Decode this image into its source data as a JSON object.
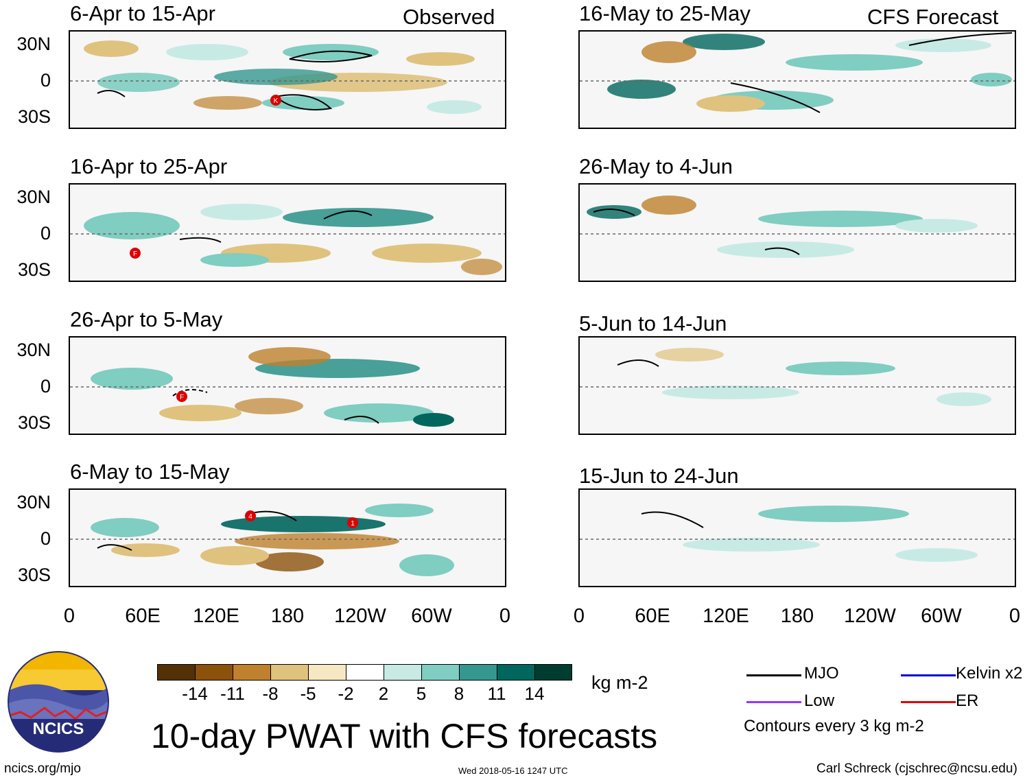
{
  "header": {
    "observed_label": "Observed",
    "forecast_label": "CFS Forecast"
  },
  "observed_panels": [
    {
      "title": "6-Apr to 15-Apr",
      "storm_labels": [
        "K"
      ]
    },
    {
      "title": "16-Apr to 25-Apr",
      "storm_labels": [
        "F"
      ]
    },
    {
      "title": "26-Apr to 5-May",
      "storm_labels": [
        "F"
      ]
    },
    {
      "title": "6-May to 15-May",
      "storm_labels": [
        "4",
        "1"
      ]
    }
  ],
  "forecast_panels": [
    {
      "title": "16-May to 25-May"
    },
    {
      "title": "26-May to 4-Jun"
    },
    {
      "title": "5-Jun to 14-Jun"
    },
    {
      "title": "15-Jun to 24-Jun"
    }
  ],
  "lat_labels": [
    "30N",
    "0",
    "30S"
  ],
  "lon_labels": [
    "0",
    "60E",
    "120E",
    "180",
    "120W",
    "60W",
    "0"
  ],
  "colorbar": {
    "units": "kg m-2",
    "labels": [
      "-14",
      "-11",
      "-8",
      "-5",
      "-2",
      "2",
      "5",
      "8",
      "11",
      "14"
    ],
    "colors": [
      "#543005",
      "#8c510a",
      "#bf812d",
      "#dfc27d",
      "#f6e8c3",
      "#ffffff",
      "#c7eae5",
      "#80cdc1",
      "#35978f",
      "#01665e",
      "#003c30"
    ]
  },
  "legend": {
    "items": [
      {
        "label": "MJO",
        "color": "#000000"
      },
      {
        "label": "Kelvin x2",
        "color": "#0000cc"
      },
      {
        "label": "Low",
        "color": "#9933ff"
      },
      {
        "label": "ER",
        "color": "#dd0000"
      }
    ],
    "note": "Contours every 3 kg m-2"
  },
  "logo_text": "NCICS",
  "title": "10-day PWAT with CFS forecasts",
  "footer": {
    "url": "ncics.org/mjo",
    "timestamp": "Wed 2018-05-16 1247 UTC",
    "credit": "Carl Schreck (cjschrec@ncsu.edu)"
  }
}
